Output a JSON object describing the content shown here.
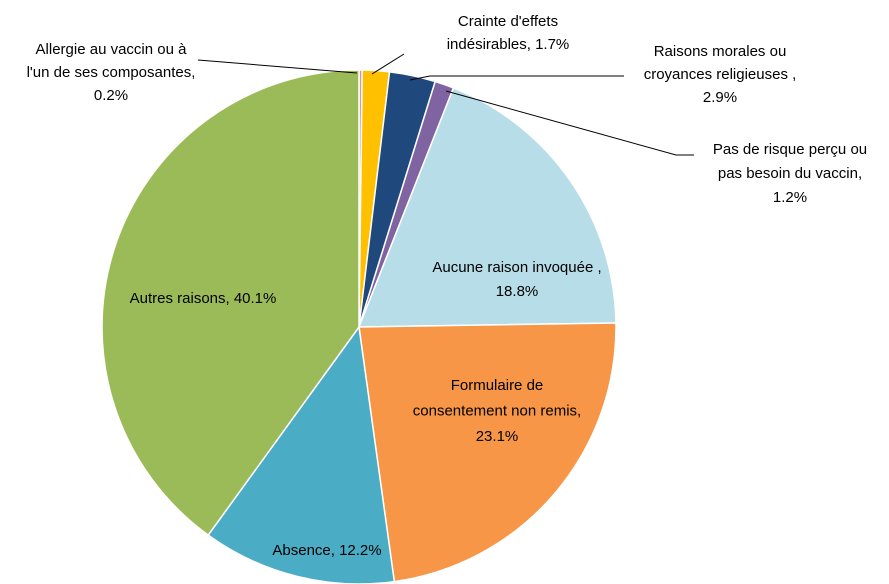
{
  "chart_data": {
    "type": "pie",
    "values": [
      0.2,
      1.7,
      2.9,
      1.2,
      18.8,
      23.1,
      12.2,
      40.1
    ],
    "value_labels": [
      [
        "Allergie au vaccin ou à",
        "l'un de ses composantes,",
        "0.2%"
      ],
      [
        "Crainte d'effets",
        "indésirables, 1.7%"
      ],
      [
        "Raisons morales ou",
        "croyances religieuses ,",
        "2.9%"
      ],
      [
        "Pas de risque perçu ou",
        "pas besoin du vaccin,",
        "1.2%"
      ],
      [
        "Aucune raison invoquée ,",
        "18.8%"
      ],
      [
        "Formulaire de",
        "consentement non remis,",
        "23.1%"
      ],
      [
        "Absence, 12.2%"
      ],
      [
        "Autres raisons, 40.1%"
      ]
    ],
    "colors": [
      "#d99694",
      "#ffc000",
      "#1f497d",
      "#8064a2",
      "#b7dde8",
      "#f79646",
      "#4bacc6",
      "#9bbb59"
    ]
  }
}
